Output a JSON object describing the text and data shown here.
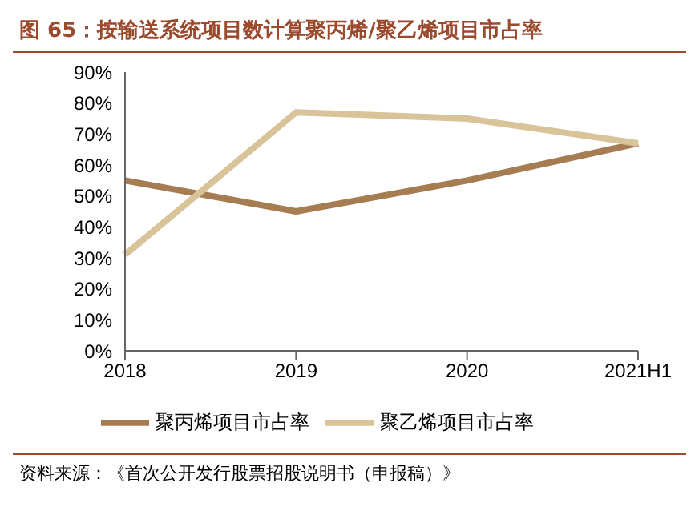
{
  "chart_data": {
    "type": "line",
    "title": "图 65：按输送系统项目数计算聚丙烯/聚乙烯项目市占率",
    "categories": [
      "2018",
      "2019",
      "2020",
      "2021H1"
    ],
    "series": [
      {
        "name": "聚丙烯项目市占率",
        "color": "#a67c52",
        "values": [
          55,
          45,
          55,
          67
        ]
      },
      {
        "name": "聚乙烯项目市占率",
        "color": "#d9c49a",
        "values": [
          31,
          77,
          75,
          67
        ]
      }
    ],
    "ylim": [
      0,
      90
    ],
    "yticks": [
      {
        "value": 0,
        "label": "0%"
      },
      {
        "value": 10,
        "label": "10%"
      },
      {
        "value": 20,
        "label": "20%"
      },
      {
        "value": 30,
        "label": "30%"
      },
      {
        "value": 40,
        "label": "40%"
      },
      {
        "value": 50,
        "label": "50%"
      },
      {
        "value": 60,
        "label": "60%"
      },
      {
        "value": 70,
        "label": "70%"
      },
      {
        "value": 80,
        "label": "80%"
      },
      {
        "value": 90,
        "label": "90%"
      }
    ],
    "grid": false,
    "legend": "bottom",
    "marker": "none",
    "line_style": "solid",
    "annotations": [
      "资料来源：《首次公开发行股票招股说明书（申报稿）》"
    ]
  }
}
